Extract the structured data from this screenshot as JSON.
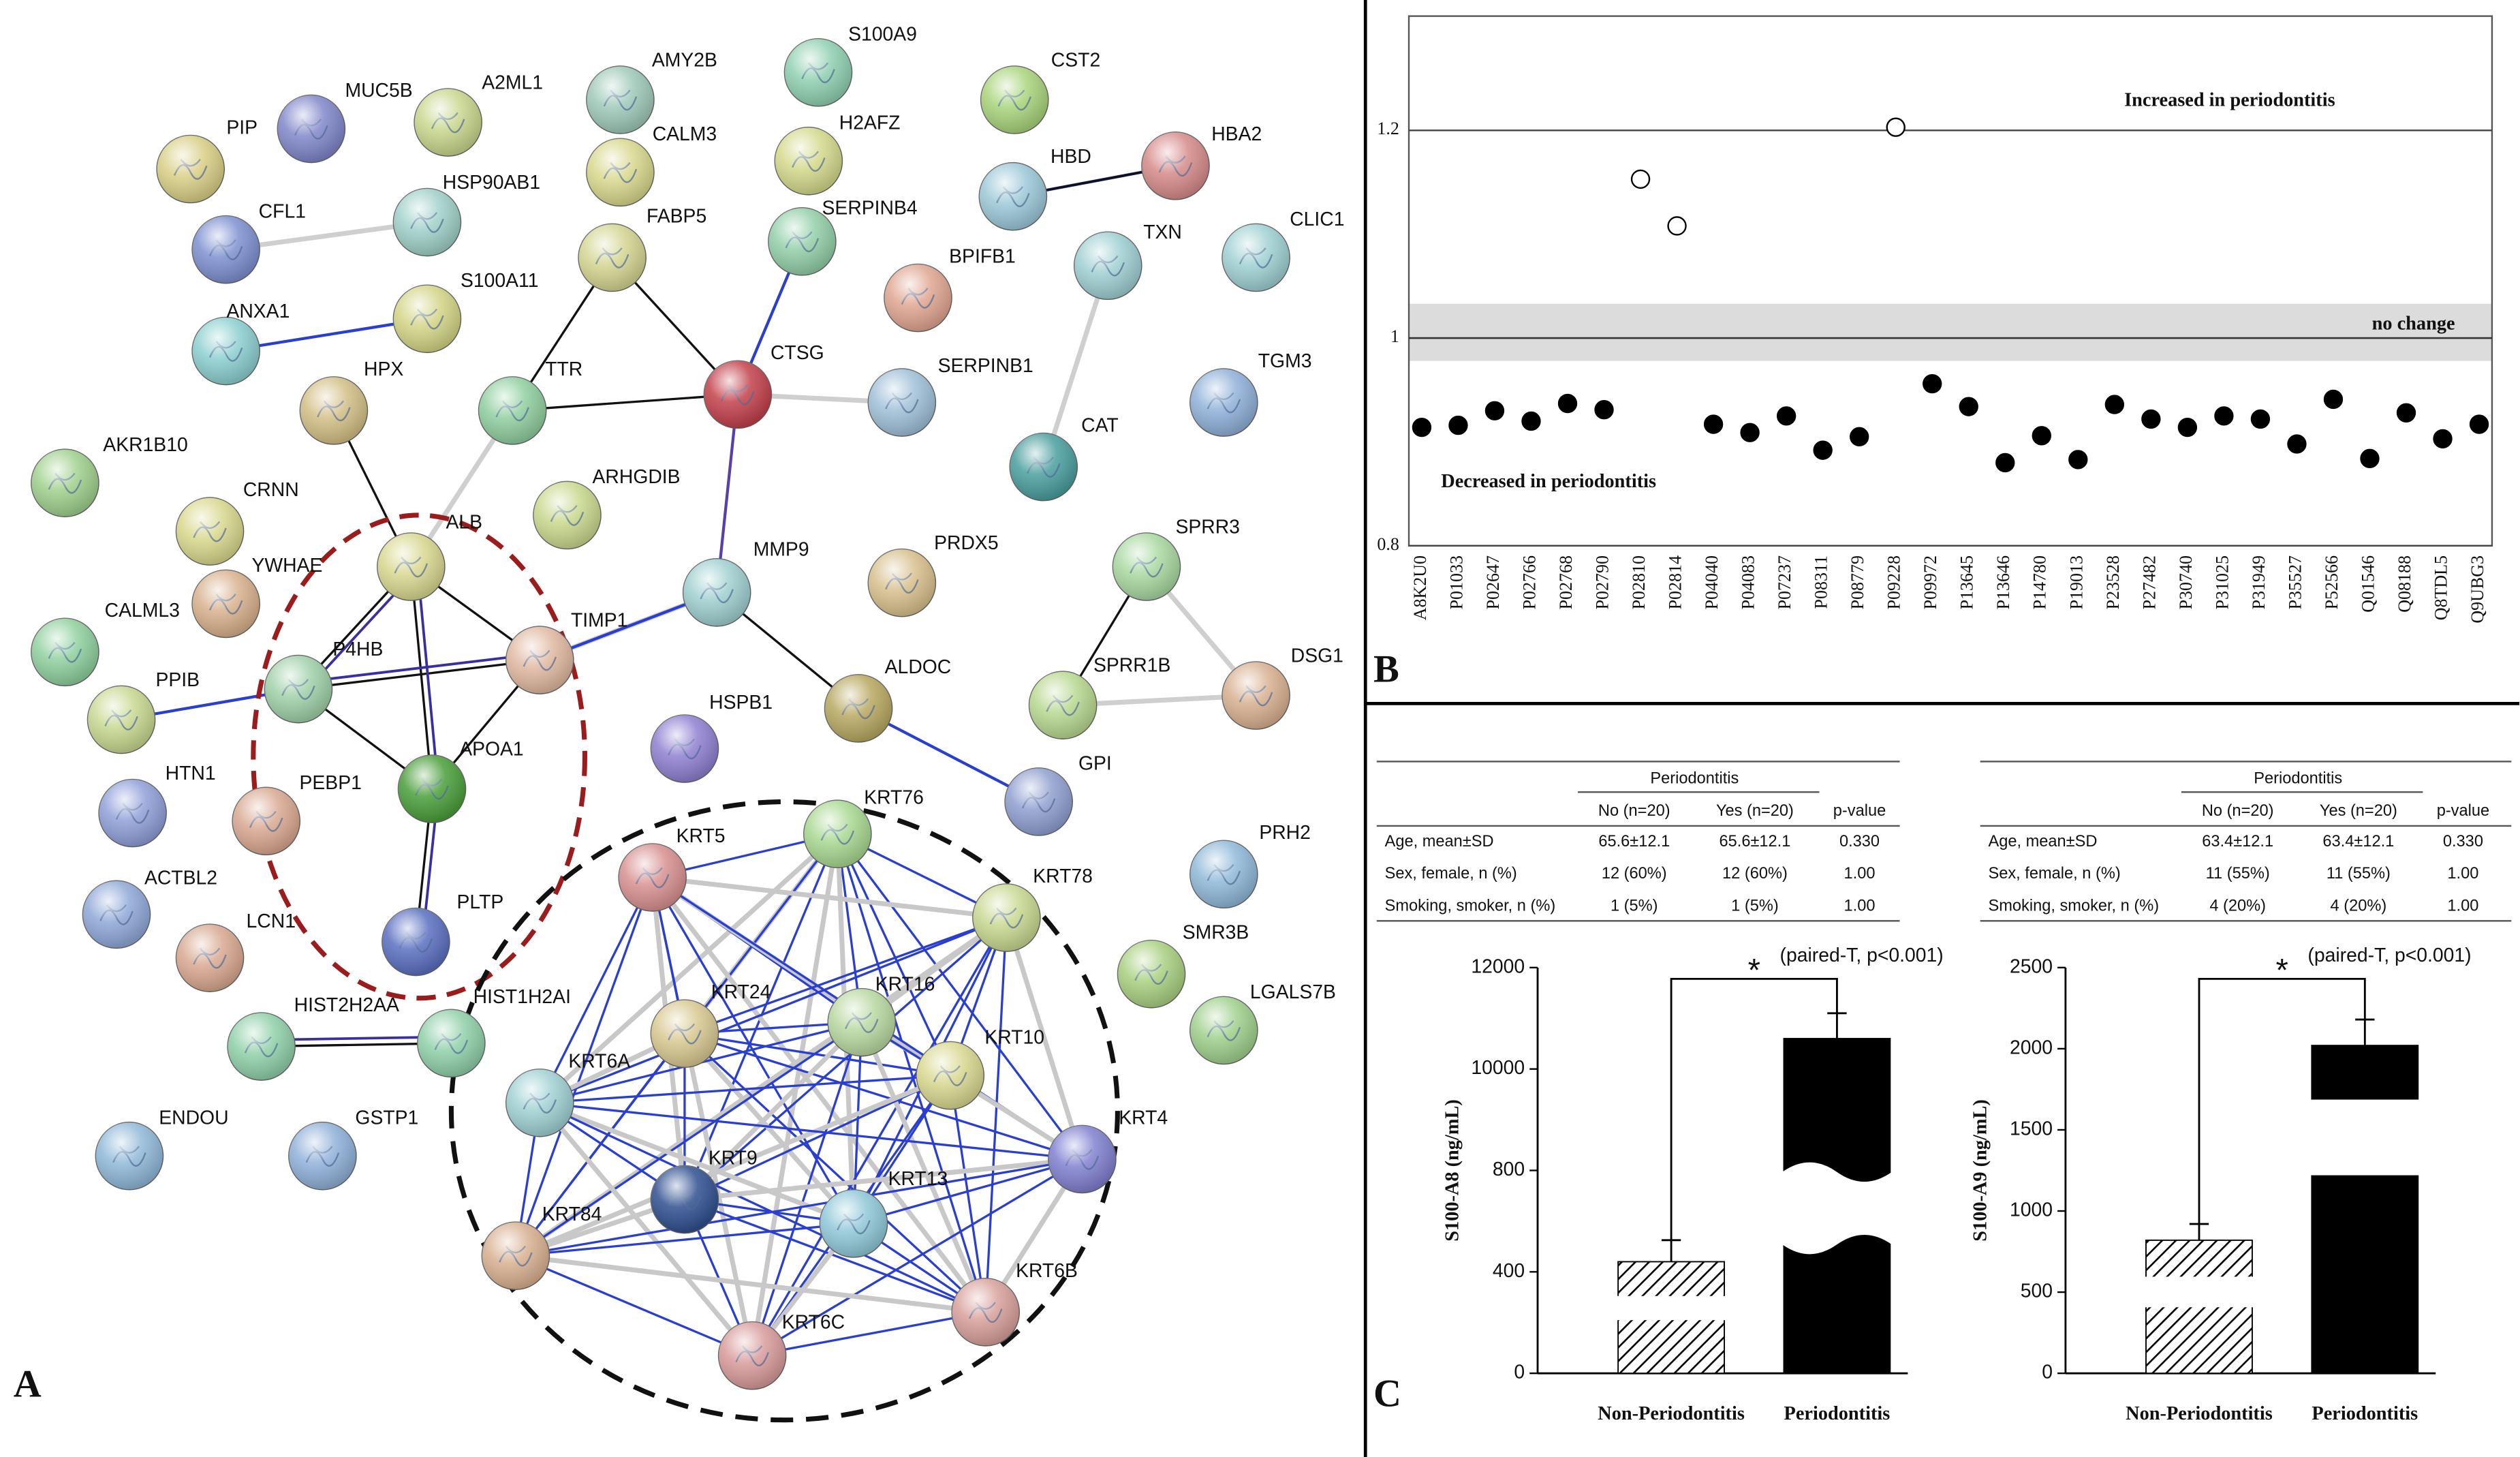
{
  "panel_labels": [
    "A",
    "B",
    "C"
  ],
  "network": {
    "nodes": [
      {
        "label": "PIP",
        "color": "#d9cf85"
      },
      {
        "label": "MUC5B",
        "color": "#7f86c9"
      },
      {
        "label": "A2ML1",
        "color": "#c8d68c"
      },
      {
        "label": "AMY2B",
        "color": "#9ec9b8"
      },
      {
        "label": "S100A9",
        "color": "#8fd0b0"
      },
      {
        "label": "CST2",
        "color": "#a8d47a"
      },
      {
        "label": "CALM3",
        "color": "#d8d88c"
      },
      {
        "label": "H2AFZ",
        "color": "#d3d98a"
      },
      {
        "label": "HSP90AB1",
        "color": "#9fd0c8"
      },
      {
        "label": "CFL1",
        "color": "#7d8fd0"
      },
      {
        "label": "FABP5",
        "color": "#d3d590"
      },
      {
        "label": "SERPINB4",
        "color": "#92cfa8"
      },
      {
        "label": "HBD",
        "color": "#9cc8d8"
      },
      {
        "label": "HBA2",
        "color": "#d68a8a"
      },
      {
        "label": "TXN",
        "color": "#9fcfd3"
      },
      {
        "label": "CLIC1",
        "color": "#9fd0d3"
      },
      {
        "label": "BPIFB1",
        "color": "#e0a590"
      },
      {
        "label": "S100A11",
        "color": "#d3d585"
      },
      {
        "label": "ANXA1",
        "color": "#8ccfd0"
      },
      {
        "label": "HPX",
        "color": "#d3bf85"
      },
      {
        "label": "TTR",
        "color": "#8fcf9e"
      },
      {
        "label": "CTSG",
        "color": "#c2404a"
      },
      {
        "label": "SERPINB1",
        "color": "#9fc0d8"
      },
      {
        "label": "TGM3",
        "color": "#8fb0d8"
      },
      {
        "label": "CAT",
        "color": "#4a9e9e"
      },
      {
        "label": "AKR1B10",
        "color": "#9fd08c"
      },
      {
        "label": "CRNN",
        "color": "#d8d88c"
      },
      {
        "label": "ARHGDIB",
        "color": "#c8d88c"
      },
      {
        "label": "PRDX5",
        "color": "#d8c08c"
      },
      {
        "label": "SPRR3",
        "color": "#a8d8a0"
      },
      {
        "label": "ALB",
        "color": "#d8d890"
      },
      {
        "label": "YWHAE",
        "color": "#d8b08c"
      },
      {
        "label": "MMP9",
        "color": "#9fcfd0"
      },
      {
        "label": "TIMP1",
        "color": "#e0b8a0"
      },
      {
        "label": "CALML3",
        "color": "#8fd09e"
      },
      {
        "label": "P4HB",
        "color": "#9fd0a8"
      },
      {
        "label": "PPIB",
        "color": "#c8d890"
      },
      {
        "label": "SPRR1B",
        "color": "#b8d890"
      },
      {
        "label": "DSG1",
        "color": "#d8b090"
      },
      {
        "label": "ALDOC",
        "color": "#b8a860"
      },
      {
        "label": "HSPB1",
        "color": "#8f7fd0"
      },
      {
        "label": "APOA1",
        "color": "#4a9e3a"
      },
      {
        "label": "PEBP1",
        "color": "#d8a890"
      },
      {
        "label": "HTN1",
        "color": "#8f9fd8"
      },
      {
        "label": "GPI",
        "color": "#8f9fd0"
      },
      {
        "label": "KRT76",
        "color": "#a8d890"
      },
      {
        "label": "KRT5",
        "color": "#d89090"
      },
      {
        "label": "KRT78",
        "color": "#c8d890"
      },
      {
        "label": "PRH2",
        "color": "#8fb8d8"
      },
      {
        "label": "ACTBL2",
        "color": "#8fa8d8"
      },
      {
        "label": "PLTP",
        "color": "#5a6fc0"
      },
      {
        "label": "LCN1",
        "color": "#d8a890"
      },
      {
        "label": "SMR3B",
        "color": "#a8d080"
      },
      {
        "label": "KRT24",
        "color": "#d8c890"
      },
      {
        "label": "KRT16",
        "color": "#b8d8a0"
      },
      {
        "label": "HIST2H2AA",
        "color": "#8fd0a8"
      },
      {
        "label": "HIST1H2AI",
        "color": "#8fd0a8"
      },
      {
        "label": "LGALS7B",
        "color": "#9fd08c"
      },
      {
        "label": "KRT10",
        "color": "#d8d890"
      },
      {
        "label": "KRT6A",
        "color": "#9fd0d3"
      },
      {
        "label": "ENDOU",
        "color": "#8fb8d8"
      },
      {
        "label": "GSTP1",
        "color": "#8fb0d8"
      },
      {
        "label": "KRT4",
        "color": "#7f7fd0"
      },
      {
        "label": "KRT9",
        "color": "#2f4f8f"
      },
      {
        "label": "KRT13",
        "color": "#8fc8d8"
      },
      {
        "label": "KRT84",
        "color": "#d8b090"
      },
      {
        "label": "KRT6B",
        "color": "#d8a09a"
      },
      {
        "label": "KRT6C",
        "color": "#d89a9a"
      }
    ]
  },
  "chart_data": [
    {
      "type": "scatter",
      "categories": [
        "A8K2U0",
        "P01033",
        "P02647",
        "P02766",
        "P02768",
        "P02790",
        "P02810",
        "P02814",
        "P04040",
        "P04083",
        "P07237",
        "P08311",
        "P08779",
        "P09228",
        "P09972",
        "P13645",
        "P13646",
        "P14780",
        "P19013",
        "P23528",
        "P27482",
        "P30740",
        "P31025",
        "P31949",
        "P35527",
        "P52566",
        "Q01546",
        "Q08188",
        "Q8TDL5",
        "Q9UBG3"
      ],
      "values": [
        0.914,
        0.916,
        0.93,
        0.92,
        0.937,
        0.931,
        1.153,
        1.108,
        0.917,
        0.909,
        0.925,
        0.892,
        0.905,
        1.203,
        0.956,
        0.934,
        0.88,
        0.906,
        0.883,
        0.936,
        0.922,
        0.914,
        0.925,
        0.922,
        0.898,
        0.941,
        0.884,
        0.928,
        0.903,
        0.917
      ],
      "ylim": [
        0.8,
        1.31
      ],
      "yticks": [
        0.8,
        1,
        {
          "value": 1.2,
          "label": "1.2"
        }
      ],
      "reference_line": 1,
      "band": [
        0.978,
        1.033
      ],
      "color": "#000000",
      "annotations": [
        "Increased in periodontitis",
        "no change",
        "Decreased in periodontitis"
      ]
    },
    {
      "type": "bar",
      "y_label": "S100-A8 (ng/mL)",
      "categories": [
        "Non-Periodontitis",
        "Periodontitis"
      ],
      "values": [
        440,
        10600
      ],
      "errors": [
        85,
        500
      ],
      "hatch": [
        true,
        false
      ],
      "color": "#000000",
      "ylim": [
        0,
        12000
      ],
      "yticks": [
        0,
        400,
        800,
        10000,
        12000
      ],
      "axis_break": true,
      "annotations": [
        "*",
        "(paired-T, p<0.001)"
      ]
    },
    {
      "type": "bar",
      "y_label": "S100-A9 (ng/mL)",
      "categories": [
        "Non-Periodontitis",
        "Periodontitis"
      ],
      "values": [
        820,
        2020
      ],
      "errors": [
        100,
        160
      ],
      "hatch": [
        true,
        false
      ],
      "color": "#000000",
      "ylim": [
        0,
        2500
      ],
      "yticks": [
        0,
        500,
        1000,
        1500,
        2000,
        2500
      ],
      "axis_break": false,
      "annotations": [
        "*",
        "(paired-T, p<0.001)"
      ]
    }
  ],
  "tables": [
    {
      "group": "Periodontitis",
      "columns": [
        "No (n=20)",
        "Yes (n=20)",
        "p-value"
      ],
      "rows": [
        [
          "Age, mean±SD",
          "65.6±12.1",
          "65.6±12.1",
          "0.330"
        ],
        [
          "Sex, female, n (%)",
          "12 (60%)",
          "12 (60%)",
          "1.00"
        ],
        [
          "Smoking, smoker, n (%)",
          "1 (5%)",
          "1 (5%)",
          "1.00"
        ]
      ]
    },
    {
      "group": "Periodontitis",
      "columns": [
        "No (n=20)",
        "Yes (n=20)",
        "p-value"
      ],
      "rows": [
        [
          "Age, mean±SD",
          "63.4±12.1",
          "63.4±12.1",
          "0.330"
        ],
        [
          "Sex, female, n (%)",
          "11 (55%)",
          "11 (55%)",
          "1.00"
        ],
        [
          "Smoking, smoker, n (%)",
          "4 (20%)",
          "4 (20%)",
          "1.00"
        ]
      ]
    }
  ]
}
